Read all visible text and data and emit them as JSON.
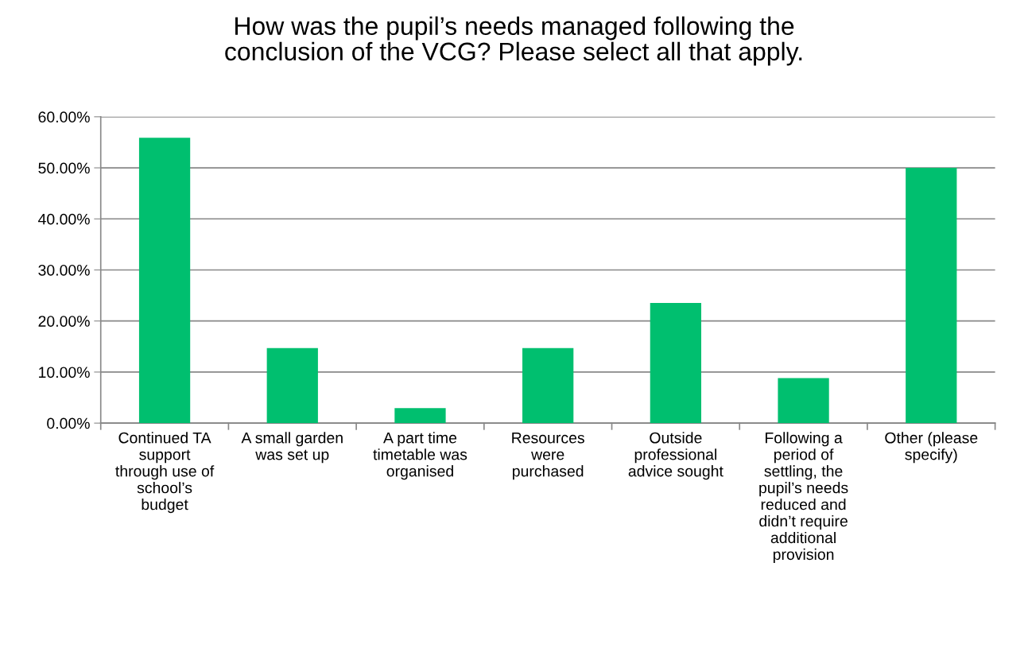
{
  "chart_data": {
    "type": "bar",
    "title": "How was the pupil’s needs managed following the\nconclusion of the VCG? Please select all that apply.",
    "categories": [
      "Continued TA\nsupport\nthrough use of\nschool’s\nbudget",
      "A small garden\nwas set up",
      "A part time\ntimetable was\norganised",
      "Resources\nwere\npurchased",
      "Outside\nprofessional\nadvice sought",
      "Following a\nperiod of\nsettling, the\npupil’s needs\nreduced and\ndidn’t require\nadditional\nprovision",
      "Other (please\nspecify)"
    ],
    "values": [
      55.88,
      14.71,
      2.94,
      14.71,
      23.53,
      8.82,
      50.0
    ],
    "color": "#00bf6f",
    "ylim": [
      0,
      60
    ],
    "yticks": [
      {
        "value": 0,
        "label": "0.00%"
      },
      {
        "value": 10,
        "label": "10.00%"
      },
      {
        "value": 20,
        "label": "20.00%"
      },
      {
        "value": 30,
        "label": "30.00%"
      },
      {
        "value": 40,
        "label": "40.00%"
      },
      {
        "value": 50,
        "label": "50.00%"
      },
      {
        "value": 60,
        "label": "60.00%"
      }
    ],
    "grid": "y"
  }
}
